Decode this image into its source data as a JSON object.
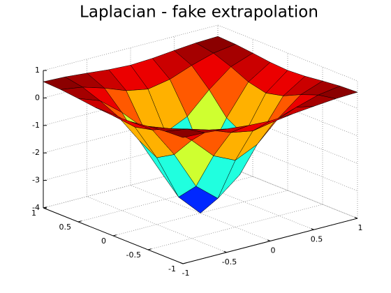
{
  "chart_data": {
    "type": "surface",
    "title": "Laplacian - fake extrapolation",
    "x": [
      -1,
      -0.75,
      -0.5,
      -0.25,
      0,
      0.25,
      0.5,
      0.75,
      1
    ],
    "y": [
      -1,
      -0.75,
      -0.5,
      -0.25,
      0,
      0.25,
      0.5,
      0.75,
      1
    ],
    "z": [
      [
        0.59,
        0.56,
        0.49,
        0.41,
        0.37,
        0.41,
        0.49,
        0.56,
        0.59
      ],
      [
        0.56,
        0.44,
        0.2,
        -0.1,
        -0.25,
        -0.1,
        0.2,
        0.44,
        0.56
      ],
      [
        0.49,
        0.2,
        -0.43,
        -1.2,
        -1.57,
        -1.2,
        -0.43,
        0.2,
        0.49
      ],
      [
        0.41,
        -0.1,
        -1.2,
        -2.56,
        -3.21,
        -2.56,
        -1.2,
        -0.1,
        0.41
      ],
      [
        0.37,
        -0.25,
        -1.57,
        -3.21,
        -4.0,
        -3.21,
        -1.57,
        -0.25,
        0.37
      ],
      [
        0.41,
        -0.1,
        -1.2,
        -2.56,
        -3.21,
        -2.56,
        -1.2,
        -0.1,
        0.41
      ],
      [
        0.49,
        0.2,
        -0.43,
        -1.2,
        -1.57,
        -1.2,
        -0.43,
        0.2,
        0.49
      ],
      [
        0.56,
        0.44,
        0.2,
        -0.1,
        -0.25,
        -0.1,
        0.2,
        0.44,
        0.56
      ],
      [
        0.59,
        0.56,
        0.49,
        0.41,
        0.37,
        0.41,
        0.49,
        0.56,
        0.59
      ]
    ],
    "colormap": "jet",
    "edge_color": "#000000",
    "xlim": [
      -1,
      1
    ],
    "xticks": [
      -1,
      -0.5,
      0,
      0.5,
      1
    ],
    "ylim": [
      -1,
      1
    ],
    "yticks": [
      -1,
      -0.5,
      0,
      0.5,
      1
    ],
    "zlim": [
      -4,
      1
    ],
    "zticks": [
      -4,
      -3,
      -2,
      -1,
      0,
      1
    ],
    "grid": true
  }
}
